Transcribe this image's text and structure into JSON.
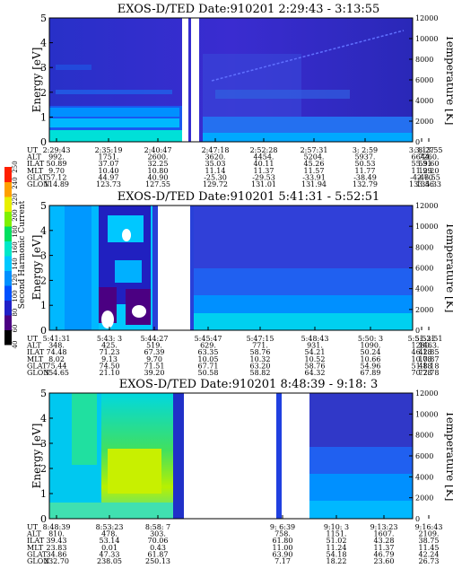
{
  "chart_data": [
    {
      "type": "heatmap",
      "title": "EXOS-D/TED   Date:910201  2:29:43 - 3:13:55",
      "ylabel": "Energy [eV]",
      "y2label": "Temperature [K]",
      "ylim": [
        0,
        5
      ],
      "yticks": [
        "0",
        "1",
        "2",
        "3",
        "4",
        "5"
      ],
      "y2lim": [
        0,
        12000
      ],
      "y2ticks": [
        "0",
        "2000",
        "4000",
        "6000",
        "8000",
        "10000",
        "12000"
      ],
      "row_labels": [
        "UT",
        "ALT",
        "ILAT",
        "MLT",
        "GLAT",
        "GLON"
      ],
      "columns": [
        [
          "2:29:43",
          "992.",
          "50.89",
          "9.70",
          "57.12",
          "114.89"
        ],
        [
          "2:35:19",
          "1751.",
          "37.07",
          "10.40",
          "44.97",
          "123.73"
        ],
        [
          "2:40:47",
          "2600.",
          "32.25",
          "10.80",
          "40.90",
          "127.55"
        ],
        [
          "2:47:18",
          "3620.",
          "35.03",
          "11.14",
          "-25.30",
          "129.72"
        ],
        [
          "2:52:28",
          "4454.",
          "40.11",
          "11.37",
          "-29.53",
          "131.01"
        ],
        [
          "2:57:31",
          "5204.",
          "45.26",
          "11.57",
          "-33.91",
          "131.94"
        ],
        [
          "3: 2:59",
          "5937.",
          "50.53",
          "11.77",
          "-38.49",
          "132.79"
        ],
        [
          "3: 8:27",
          "6644.",
          "55.31",
          "11.99",
          "-42.70",
          "133.56"
        ],
        [
          "3:13:55",
          "7260.",
          "59.60",
          "12.20",
          "-46.55",
          "134.33"
        ]
      ]
    },
    {
      "type": "heatmap",
      "title": "EXOS-D/TED   Date:910201  5:41:31 - 5:52:51",
      "ylabel": "Energy [eV]",
      "y2label": "Temperature [K]",
      "ylim": [
        0,
        5
      ],
      "yticks": [
        "0",
        "1",
        "2",
        "3",
        "4",
        "5"
      ],
      "y2lim": [
        0,
        12000
      ],
      "y2ticks": [
        "0",
        "2000",
        "4000",
        "6000",
        "8000",
        "10000",
        "12000"
      ],
      "row_labels": [
        "UT",
        "ALT",
        "ILAT",
        "MLT",
        "GLAT",
        "GLON"
      ],
      "columns": [
        [
          "5:41:31",
          "348.",
          "74.48",
          "8.02",
          "75.44",
          "354.65"
        ],
        [
          "5:43: 3",
          "425.",
          "71.23",
          "9.13",
          "74.50",
          "21.10"
        ],
        [
          "5:44:27",
          "519.",
          "67.39",
          "9.70",
          "71.51",
          "39.20"
        ],
        [
          "5:45:47",
          "629.",
          "63.35",
          "10.05",
          "67.71",
          "50.58"
        ],
        [
          "5:47:15",
          "771.",
          "58.76",
          "10.32",
          "63.20",
          "58.82"
        ],
        [
          "5:48:43",
          "931.",
          "54.21",
          "10.52",
          "58.76",
          "64.32"
        ],
        [
          "5:50: 3",
          "1090.",
          "50.24",
          "10.66",
          "54.96",
          "67.89"
        ],
        [
          "5:51:31",
          "1280.",
          "46.18",
          "10.78",
          "51.18",
          "70.78"
        ],
        [
          "5:52:51",
          "1463.",
          "42.85",
          "10.87",
          "48.18",
          "72.78"
        ]
      ]
    },
    {
      "type": "heatmap",
      "title": "EXOS-D/TED   Date:910201  8:48:39 - 9:18: 3",
      "ylabel": "Energy [eV]",
      "y2label": "Temperature [K]",
      "ylim": [
        0,
        5
      ],
      "yticks": [
        "0",
        "1",
        "2",
        "3",
        "4",
        "5"
      ],
      "y2lim": [
        0,
        12000
      ],
      "y2ticks": [
        "0",
        "2000",
        "4000",
        "6000",
        "8000",
        "10000",
        "12000"
      ],
      "row_labels": [
        "UT",
        "ALT",
        "ILAT",
        "MLT",
        "GLAT",
        "GLON"
      ],
      "columns": [
        [
          "8:48:39",
          "810.",
          "39.43",
          "23.83",
          "34.86",
          "232.70"
        ],
        [
          "8:53:23",
          "478.",
          "53.14",
          "0.01",
          "47.33",
          "238.05"
        ],
        [
          "8:58: 7",
          "303.",
          "70.06",
          "0.43",
          "61.87",
          "250.13"
        ],
        [
          "9: 6:39",
          "758.",
          "61.80",
          "11.00",
          "63.90",
          "7.17"
        ],
        [
          "9:10: 3",
          "1151.",
          "51.02",
          "11.24",
          "54.18",
          "18.22"
        ],
        [
          "9:13:23",
          "1607.",
          "43.28",
          "11.37",
          "46.79",
          "23.60"
        ],
        [
          "9:16:43",
          "2109.",
          "38.75",
          "11.45",
          "42.24",
          "26.73"
        ]
      ]
    }
  ],
  "colorbar": {
    "label": "Second Harmonic Current",
    "ticks": [
      "40",
      "60",
      "80",
      "100",
      "120",
      "140",
      "160",
      "180",
      "200",
      "220",
      "240",
      "250"
    ],
    "colors": [
      "#000000",
      "#4b0082",
      "#2020c8",
      "#0050ff",
      "#0090ff",
      "#00c8ff",
      "#00e8c8",
      "#00e060",
      "#80f000",
      "#e8f000",
      "#ffa000",
      "#ff2000"
    ]
  }
}
